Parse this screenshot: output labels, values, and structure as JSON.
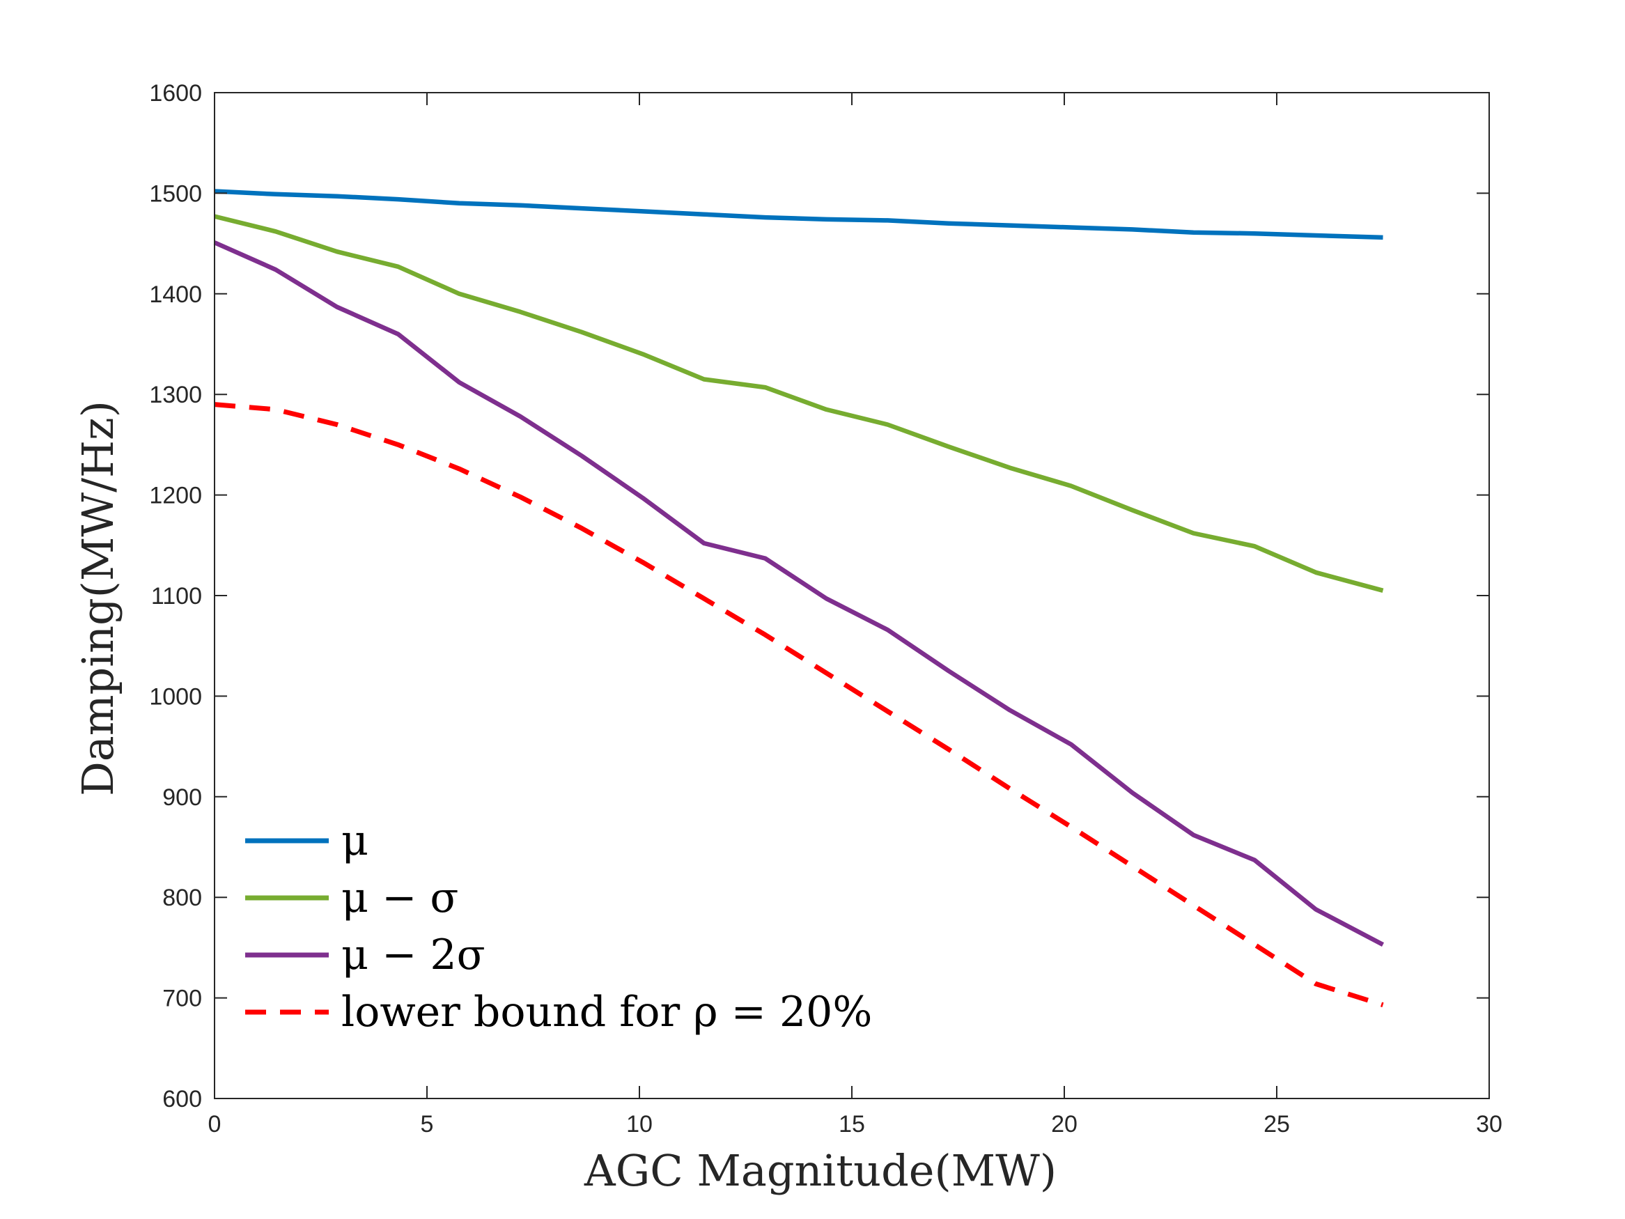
{
  "chart_data": {
    "type": "line",
    "title": "",
    "xlabel": "AGC Magnitude(MW)",
    "ylabel": "Damping(MW/Hz)",
    "xlim": [
      0,
      30
    ],
    "ylim": [
      600,
      1600
    ],
    "xticks": [
      0,
      5,
      10,
      15,
      20,
      25,
      30
    ],
    "yticks": [
      600,
      700,
      800,
      900,
      1000,
      1100,
      1200,
      1300,
      1400,
      1500,
      1600
    ],
    "grid": false,
    "legend_position": "bottom-left",
    "x": [
      0,
      1.44,
      2.88,
      4.32,
      5.76,
      7.2,
      8.64,
      10.08,
      11.52,
      12.96,
      14.4,
      15.84,
      17.28,
      18.72,
      20.16,
      21.6,
      23.04,
      24.48,
      25.92,
      27.5
    ],
    "series": [
      {
        "name": "μ",
        "legend_label": "μ",
        "color": "#0072BD",
        "style": "solid",
        "values": [
          1502,
          1499,
          1497,
          1494,
          1490,
          1488,
          1485,
          1482,
          1479,
          1476,
          1474,
          1473,
          1470,
          1468,
          1466,
          1464,
          1461,
          1460,
          1458,
          1456
        ]
      },
      {
        "name": "μ − σ",
        "legend_label": "μ − σ",
        "color": "#77AC30",
        "style": "solid",
        "values": [
          1477,
          1462,
          1442,
          1427,
          1400,
          1382,
          1362,
          1340,
          1315,
          1307,
          1285,
          1270,
          1248,
          1227,
          1209,
          1185,
          1162,
          1149,
          1123,
          1105
        ]
      },
      {
        "name": "μ − 2σ",
        "legend_label": "μ − 2σ",
        "color": "#7E2F8E",
        "style": "solid",
        "values": [
          1451,
          1424,
          1387,
          1360,
          1312,
          1278,
          1239,
          1197,
          1152,
          1137,
          1097,
          1066,
          1025,
          986,
          952,
          904,
          862,
          837,
          788,
          753
        ]
      },
      {
        "name": "lower bound for ρ = 20%",
        "legend_label": "lower bound for ρ = 20%",
        "color": "#FF0000",
        "style": "dashed",
        "values": [
          1290,
          1285,
          1270,
          1250,
          1226,
          1198,
          1167,
          1133,
          1097,
          1061,
          1023,
          985,
          947,
          908,
          870,
          831,
          792,
          753,
          714,
          693
        ]
      }
    ]
  }
}
